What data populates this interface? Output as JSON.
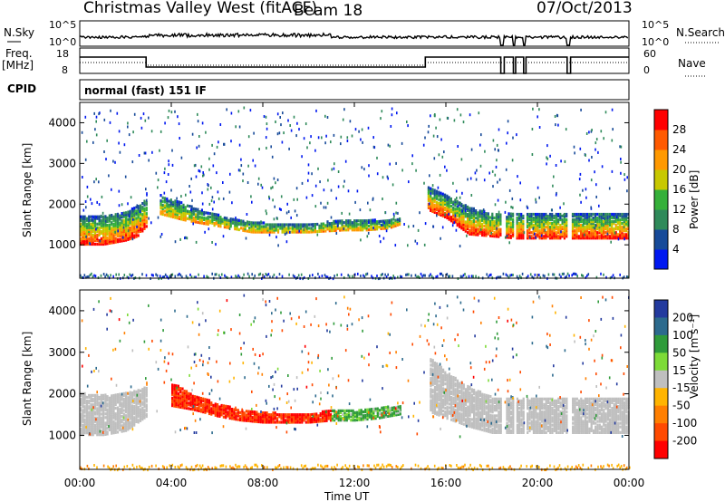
{
  "header": {
    "station": "Christmas Valley West (fitACF)",
    "beam": "Beam 18",
    "date": "07/Oct/2013"
  },
  "strips": {
    "nsky_label": "N.Sky",
    "nsky_ticks": [
      "10^5",
      "10^0"
    ],
    "nsearch_label": "N.Search",
    "freq_label": "Freq.",
    "freq_unit": "[MHz]",
    "freq_ticks": [
      "18",
      "8"
    ],
    "nave_label": "Nave",
    "nave_ticks": [
      "60",
      "0"
    ],
    "cpid_label": "CPID",
    "cpid_value": "normal (fast) 151 IF"
  },
  "colors": {
    "power": [
      "#0018f0",
      "#174a99",
      "#2f8a5a",
      "#35b03a",
      "#c8c800",
      "#ff9900",
      "#ff5a00",
      "#ff0000"
    ],
    "velocity": [
      "#233a9e",
      "#2c6a8d",
      "#2f9b3a",
      "#7ddb37",
      "#bfbfbf",
      "#ffb400",
      "#ff7f00",
      "#ff4a00",
      "#ff0000"
    ],
    "ground": "#bfbfbf"
  },
  "chart_data": [
    {
      "type": "heatmap",
      "title": "Power",
      "ylabel": "Slant Range [km]",
      "xlabel": "Time UT",
      "x_ticks": [
        "00:00",
        "04:00",
        "08:00",
        "12:00",
        "16:00",
        "20:00",
        "00:00"
      ],
      "xlim_hours": [
        0,
        24
      ],
      "ylim_km": [
        180,
        4500
      ],
      "y_ticks": [
        1000,
        2000,
        3000,
        4000
      ],
      "colorbar_label": "Power [dB]",
      "colorbar_ticks": [
        4,
        8,
        12,
        16,
        20,
        24,
        28
      ],
      "colorbar_range": [
        0,
        30
      ],
      "bands": [
        {
          "hours": [
            0,
            0.5,
            1,
            1.5,
            2,
            2.5,
            2.9
          ],
          "lower_km": [
            1050,
            1050,
            1050,
            1100,
            1150,
            1250,
            1500
          ],
          "upper_km": [
            1750,
            1750,
            1750,
            1800,
            1850,
            2000,
            2150
          ],
          "level": "strong"
        },
        {
          "hours": [
            3.5,
            4.5,
            5.5,
            6.5,
            7.5,
            8.5,
            10,
            11.5,
            12.5,
            13.5,
            14
          ],
          "lower_km": [
            1800,
            1650,
            1550,
            1450,
            1350,
            1350,
            1350,
            1400,
            1400,
            1450,
            1550
          ],
          "upper_km": [
            2250,
            2050,
            1850,
            1700,
            1600,
            1550,
            1550,
            1650,
            1650,
            1650,
            1700
          ],
          "level": "medium"
        },
        {
          "hours": [
            15.2,
            16,
            16.5,
            17,
            18,
            19,
            20,
            21,
            22,
            23,
            24
          ],
          "lower_km": [
            1900,
            1700,
            1500,
            1300,
            1250,
            1200,
            1200,
            1200,
            1200,
            1200,
            1200
          ],
          "upper_km": [
            2450,
            2250,
            2100,
            1950,
            1800,
            1800,
            1800,
            1800,
            1800,
            1800,
            1800
          ],
          "level": "strong"
        }
      ]
    },
    {
      "type": "heatmap",
      "title": "Velocity",
      "ylabel": "Slant Range [km]",
      "xlabel": "Time UT",
      "x_ticks": [
        "00:00",
        "04:00",
        "08:00",
        "12:00",
        "16:00",
        "20:00",
        "00:00"
      ],
      "xlim_hours": [
        0,
        24
      ],
      "ylim_km": [
        180,
        4500
      ],
      "y_ticks": [
        1000,
        2000,
        3000,
        4000
      ],
      "colorbar_label": "Velocity [m s⁻¹]",
      "colorbar_ticks": [
        200,
        100,
        50,
        15,
        -15,
        -50,
        -100,
        -200
      ],
      "bands": [
        {
          "hours": [
            0,
            1,
            2,
            2.9
          ],
          "lower_km": [
            1050,
            1050,
            1150,
            1500
          ],
          "upper_km": [
            2050,
            2000,
            2050,
            2200
          ],
          "velocity_ms": 0
        },
        {
          "hours": [
            4,
            5,
            6,
            7,
            8,
            9,
            10,
            11
          ],
          "lower_km": [
            1750,
            1650,
            1500,
            1400,
            1350,
            1350,
            1350,
            1400
          ],
          "upper_km": [
            2300,
            2000,
            1800,
            1650,
            1600,
            1550,
            1550,
            1650
          ],
          "velocity_ms": -200
        },
        {
          "hours": [
            11,
            12,
            13,
            14
          ],
          "lower_km": [
            1400,
            1400,
            1450,
            1550
          ],
          "upper_km": [
            1650,
            1650,
            1700,
            1750
          ],
          "velocity_ms": 40
        },
        {
          "hours": [
            15.3,
            16,
            17,
            18,
            20,
            22,
            24
          ],
          "lower_km": [
            1600,
            1450,
            1250,
            1100,
            1100,
            1100,
            1100
          ],
          "upper_km": [
            2900,
            2550,
            2200,
            1950,
            1950,
            1950,
            1950
          ],
          "velocity_ms": 0
        }
      ]
    }
  ]
}
